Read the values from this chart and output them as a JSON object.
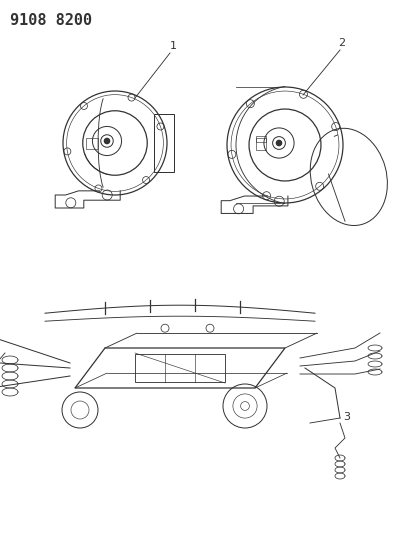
{
  "title": "9108 8200",
  "background_color": "#ffffff",
  "line_color": "#333333",
  "label_color": "#333333",
  "figsize": [
    4.1,
    5.33
  ],
  "dpi": 100,
  "labels": {
    "title": "9108 8200",
    "part1": "1",
    "part2": "2",
    "part3": "3"
  }
}
